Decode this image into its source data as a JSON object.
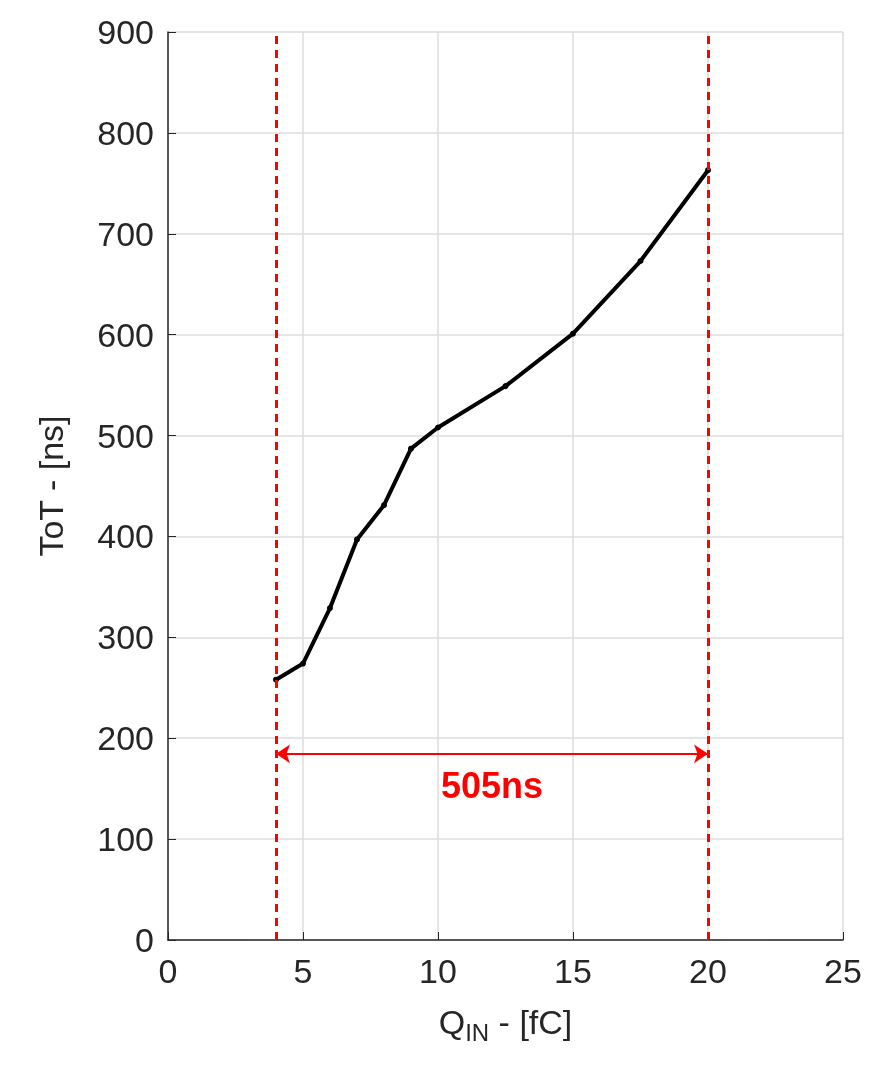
{
  "chart_data": {
    "type": "line",
    "xlabel": "Q$_{IN}$ - [fC]",
    "ylabel": "ToT - [ns]",
    "x": [
      4,
      5,
      6,
      7,
      8,
      9,
      10,
      12.5,
      15,
      17.5,
      20
    ],
    "series": [
      {
        "color": "#000000",
        "values": [
          258,
          274,
          329,
          397,
          431,
          487,
          508,
          549,
          601,
          673,
          763
        ]
      }
    ],
    "xlim": [
      0,
      25
    ],
    "xticks": [
      0,
      5,
      10,
      15,
      20,
      25
    ],
    "ylim": [
      0,
      900
    ],
    "yticks": [
      0,
      100,
      200,
      300,
      400,
      500,
      600,
      700,
      800,
      900
    ],
    "grid": true,
    "marker": "circle",
    "line_style": "solid",
    "ref_lines": [
      {
        "axis": "x",
        "value": 4,
        "color": "#ff0000",
        "line_style": "dashed"
      },
      {
        "axis": "x",
        "value": 20,
        "color": "#ff0000",
        "line_style": "dashed"
      }
    ],
    "annotations": [
      "505ns"
    ]
  }
}
